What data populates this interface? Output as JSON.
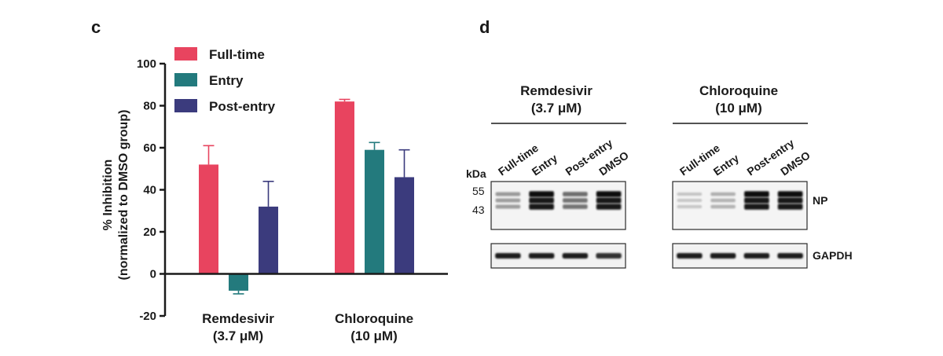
{
  "panels": {
    "c": {
      "letter": "c"
    },
    "d": {
      "letter": "d"
    }
  },
  "chart_data": {
    "type": "bar",
    "categories": [
      {
        "name": "Remdesivir",
        "dose": "(3.7 μM)"
      },
      {
        "name": "Chloroquine",
        "dose": "(10 μM)"
      }
    ],
    "series": [
      {
        "name": "Full-time",
        "color": "#e8445f",
        "values": [
          52,
          82
        ],
        "errors": [
          9,
          1
        ]
      },
      {
        "name": "Entry",
        "color": "#237a7d",
        "values": [
          -8,
          59
        ],
        "errors": [
          1.5,
          3.5
        ]
      },
      {
        "name": "Post-entry",
        "color": "#3b3b7d",
        "values": [
          32,
          46
        ],
        "errors": [
          12,
          13
        ]
      }
    ],
    "ylabel_line1": "% Inhibition",
    "ylabel_line2": "(normalized to DMSO group)",
    "ylim": [
      -20,
      100
    ],
    "yticks": [
      "-20",
      "0",
      "20",
      "40",
      "60",
      "80",
      "100"
    ],
    "legend_position": "top-left",
    "grid": false
  },
  "blots": {
    "kda_label": "kDa",
    "markers": [
      "55",
      "43"
    ],
    "targets": [
      "NP",
      "GAPDH"
    ],
    "groups": [
      {
        "title_line1": "Remdesivir",
        "title_line2": "(3.7 μM)",
        "lanes": [
          "Full-time",
          "Entry",
          "Post-entry",
          "DMSO"
        ],
        "np_intensity": [
          0.35,
          1.0,
          0.55,
          1.0
        ],
        "gapdh_intensity": [
          0.9,
          0.9,
          0.9,
          0.8
        ]
      },
      {
        "title_line1": "Chloroquine",
        "title_line2": "(10 μM)",
        "lanes": [
          "Full-time",
          "Entry",
          "Post-entry",
          "DMSO"
        ],
        "np_intensity": [
          0.15,
          0.25,
          1.0,
          1.0
        ],
        "gapdh_intensity": [
          0.9,
          0.9,
          0.9,
          0.9
        ]
      }
    ]
  }
}
